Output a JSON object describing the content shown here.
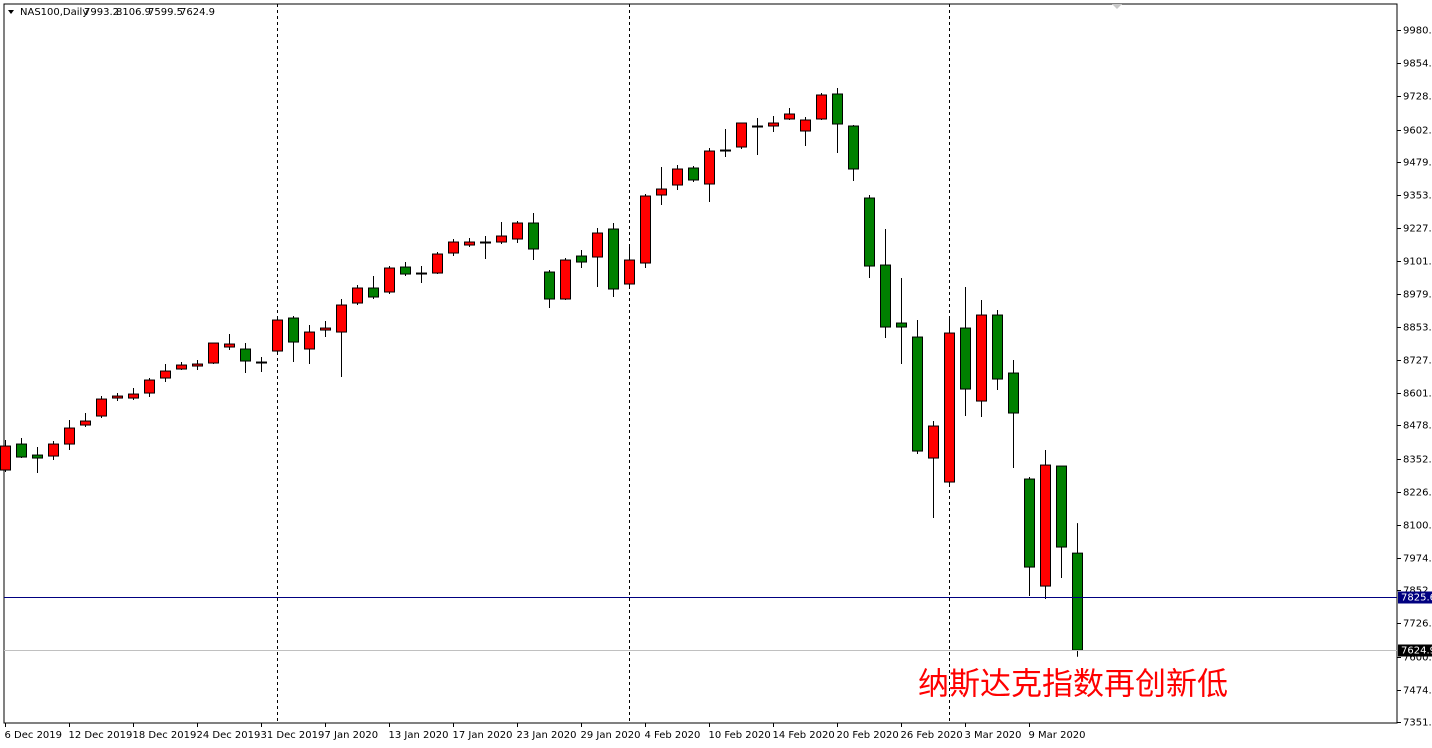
{
  "chart_data": {
    "type": "candlestick",
    "title": "NAS100,Daily",
    "annotation": "纳斯达克指数再创新低",
    "up_color": "#ff0000",
    "down_color": "#008000",
    "categories": [
      "6 Dec 2019",
      null,
      null,
      null,
      "12 Dec 2019",
      null,
      null,
      null,
      "18 Dec 2019",
      null,
      null,
      null,
      "24 Dec 2019",
      null,
      null,
      null,
      "31 Dec 2019",
      null,
      null,
      null,
      "7 Jan 2020",
      null,
      null,
      null,
      "13 Jan 2020",
      null,
      null,
      null,
      "17 Jan 2020",
      null,
      null,
      null,
      "23 Jan 2020",
      null,
      null,
      null,
      "29 Jan 2020",
      null,
      null,
      null,
      "4 Feb 2020",
      null,
      null,
      null,
      "10 Feb 2020",
      null,
      null,
      null,
      "14 Feb 2020",
      null,
      null,
      null,
      "20 Feb 2020",
      null,
      null,
      null,
      "26 Feb 2020",
      null,
      null,
      null,
      "3 Mar 2020",
      null,
      null,
      null,
      "9 Mar 2020",
      null,
      null,
      null
    ],
    "open": [
      8308.8,
      8407.5,
      8365.7,
      8361.9,
      8407.5,
      8479.7,
      8513.9,
      8582.2,
      8582.2,
      8601.2,
      8658.2,
      8692.4,
      8703.8,
      8715.2,
      8776.0,
      8768.4,
      8715.2,
      8760.8,
      8886.1,
      8768.4,
      8840.5,
      8832.9,
      8943.1,
      9000.1,
      8984.9,
      9079.8,
      9053.2,
      9057.0,
      9133.0,
      9163.4,
      9171.0,
      9174.8,
      9186.2,
      9247.0,
      9060.8,
      8958.3,
      9121.6,
      9117.8,
      9224.2,
      9015.3,
      9095.0,
      9353.3,
      9391.3,
      9455.9,
      9395.1,
      9520.4,
      9535.6,
      9611.6,
      9615.4,
      9642.0,
      9596.4,
      9642.0,
      9737.0,
      9615.4,
      9341.9,
      9087.4,
      8867.1,
      8813.9,
      8354.3,
      8263.2,
      8848.1,
      8570.8,
      8897.5,
      8677.2,
      8274.6,
      7868.1,
      8323.9,
      7993.2
    ],
    "high": [
      8422.7,
      8430.3,
      8396.1,
      8418.9,
      8498.7,
      8525.3,
      8589.8,
      8601.2,
      8620.2,
      8658.2,
      8711.4,
      8719.0,
      8726.6,
      8791.1,
      8825.3,
      8791.1,
      8738.0,
      8886.1,
      8893.7,
      8859.5,
      8874.7,
      8958.3,
      9011.5,
      9045.6,
      9083.6,
      9098.8,
      9083.6,
      9136.8,
      9186.2,
      9190.0,
      9197.6,
      9250.8,
      9254.6,
      9284.9,
      9068.4,
      9114.0,
      9144.4,
      9228.0,
      9247.0,
      9163.4,
      9357.1,
      9459.7,
      9467.3,
      9463.5,
      9531.8,
      9604.0,
      9626.8,
      9645.8,
      9653.4,
      9683.8,
      9649.6,
      9740.7,
      9759.7,
      9619.2,
      9353.3,
      9224.2,
      9038.0,
      8878.5,
      8494.9,
      8886.1,
      9003.9,
      8954.5,
      8916.5,
      8726.6,
      8282.2,
      8384.7,
      8323.9,
      8106.9
    ],
    "low": [
      8301.2,
      8354.3,
      8297.4,
      8346.7,
      8384.7,
      8472.1,
      8506.3,
      8570.8,
      8574.6,
      8586.0,
      8643.0,
      8688.6,
      8688.6,
      8711.4,
      8764.6,
      8677.2,
      8681.0,
      8757.0,
      8719.0,
      8711.4,
      8813.9,
      8662.0,
      8935.5,
      8958.3,
      8977.3,
      9045.6,
      9019.1,
      9053.2,
      9121.6,
      9155.8,
      9110.2,
      9167.2,
      9171.0,
      9106.4,
      8924.1,
      8954.5,
      9076.0,
      9003.9,
      8965.9,
      9003.9,
      9076.0,
      9315.3,
      9372.3,
      9402.7,
      9326.7,
      9497.7,
      9528.0,
      9505.2,
      9592.6,
      9638.2,
      9539.4,
      9638.2,
      9512.8,
      9406.5,
      9038.0,
      8810.1,
      8711.4,
      8369.5,
      8126.4,
      8255.6,
      8513.9,
      8510.1,
      8612.6,
      8316.3,
      7830.2,
      7818.8,
      7898.5,
      7599.5
    ],
    "close": [
      8399.9,
      8358.1,
      8354.3,
      8407.5,
      8468.3,
      8494.9,
      8578.4,
      8589.8,
      8597.4,
      8650.6,
      8684.8,
      8707.6,
      8711.4,
      8791.1,
      8787.4,
      8722.8,
      8719.0,
      8878.5,
      8794.9,
      8832.9,
      8848.1,
      8935.5,
      9000.1,
      8965.9,
      9076.0,
      9053.2,
      9057.0,
      9129.2,
      9174.8,
      9174.8,
      9174.8,
      9197.6,
      9247.0,
      9148.2,
      8958.3,
      9106.4,
      9098.8,
      9209.0,
      8996.3,
      9106.4,
      9349.5,
      9376.1,
      9452.1,
      9410.3,
      9520.4,
      9524.2,
      9626.8,
      9615.4,
      9626.8,
      9661.0,
      9638.2,
      9733.2,
      9623.0,
      9452.1,
      9083.6,
      8851.9,
      8851.9,
      8380.9,
      8475.9,
      8829.1,
      8616.4,
      8897.5,
      8654.4,
      8525.3,
      7940.3,
      8327.7,
      8016.3,
      7624.9
    ],
    "ylim": [
      7348,
      10078.8
    ],
    "yticks": [
      {
        "value": 9980,
        "label": "9980.0"
      },
      {
        "value": 9854,
        "label": "9854.0"
      },
      {
        "value": 9728,
        "label": "9728.0"
      },
      {
        "value": 9602,
        "label": "9602.0"
      },
      {
        "value": 9479.5,
        "label": "9479.5"
      },
      {
        "value": 9353.5,
        "label": "9353.5"
      },
      {
        "value": 9227.5,
        "label": "9227.5"
      },
      {
        "value": 9101.5,
        "label": "9101.5"
      },
      {
        "value": 8979,
        "label": "8979.0"
      },
      {
        "value": 8853,
        "label": "8853.0"
      },
      {
        "value": 8727,
        "label": "8727.0"
      },
      {
        "value": 8601,
        "label": "8601.0"
      },
      {
        "value": 8478.5,
        "label": "8478.5"
      },
      {
        "value": 8352.5,
        "label": "8352.5"
      },
      {
        "value": 8226.5,
        "label": "8226.5"
      },
      {
        "value": 8100.5,
        "label": "8100.5"
      },
      {
        "value": 7974.5,
        "label": "7974.5"
      },
      {
        "value": 7852,
        "label": "7852.0"
      },
      {
        "value": 7726,
        "label": "7726.0"
      },
      {
        "value": 7600,
        "label": "7600.0"
      },
      {
        "value": 7474,
        "label": "7474.0"
      },
      {
        "value": 7351.5,
        "label": "7351.5"
      }
    ],
    "levels": [
      {
        "value": 7825.6,
        "color": "#000080"
      },
      {
        "value": 7624.9,
        "color": "#c0c0c0"
      }
    ]
  }
}
